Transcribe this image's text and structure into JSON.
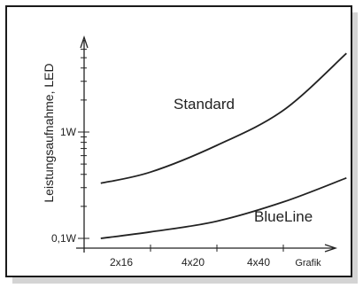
{
  "colors": {
    "line": "#222222",
    "frame": "#1a1a1a",
    "shadow": "#d4d4d4",
    "background": "#ffffff"
  },
  "chart_data": {
    "type": "line",
    "ylabel": "Leistungsaufnahme, LED",
    "x_ticks": [
      "2x16",
      "4x20",
      "4x40",
      "Grafik"
    ],
    "y_ticks": [
      "0,1W",
      "1W"
    ],
    "y_scale": "log",
    "grid": false,
    "series": [
      {
        "name": "Standard",
        "points": [
          [
            0.25,
            0.33
          ],
          [
            1.0,
            0.42
          ],
          [
            2.0,
            0.75
          ],
          [
            3.0,
            1.6
          ],
          [
            3.95,
            5.5
          ]
        ]
      },
      {
        "name": "BlueLine",
        "points": [
          [
            0.25,
            0.1
          ],
          [
            1.0,
            0.115
          ],
          [
            2.0,
            0.145
          ],
          [
            3.0,
            0.22
          ],
          [
            3.95,
            0.37
          ]
        ]
      }
    ]
  }
}
